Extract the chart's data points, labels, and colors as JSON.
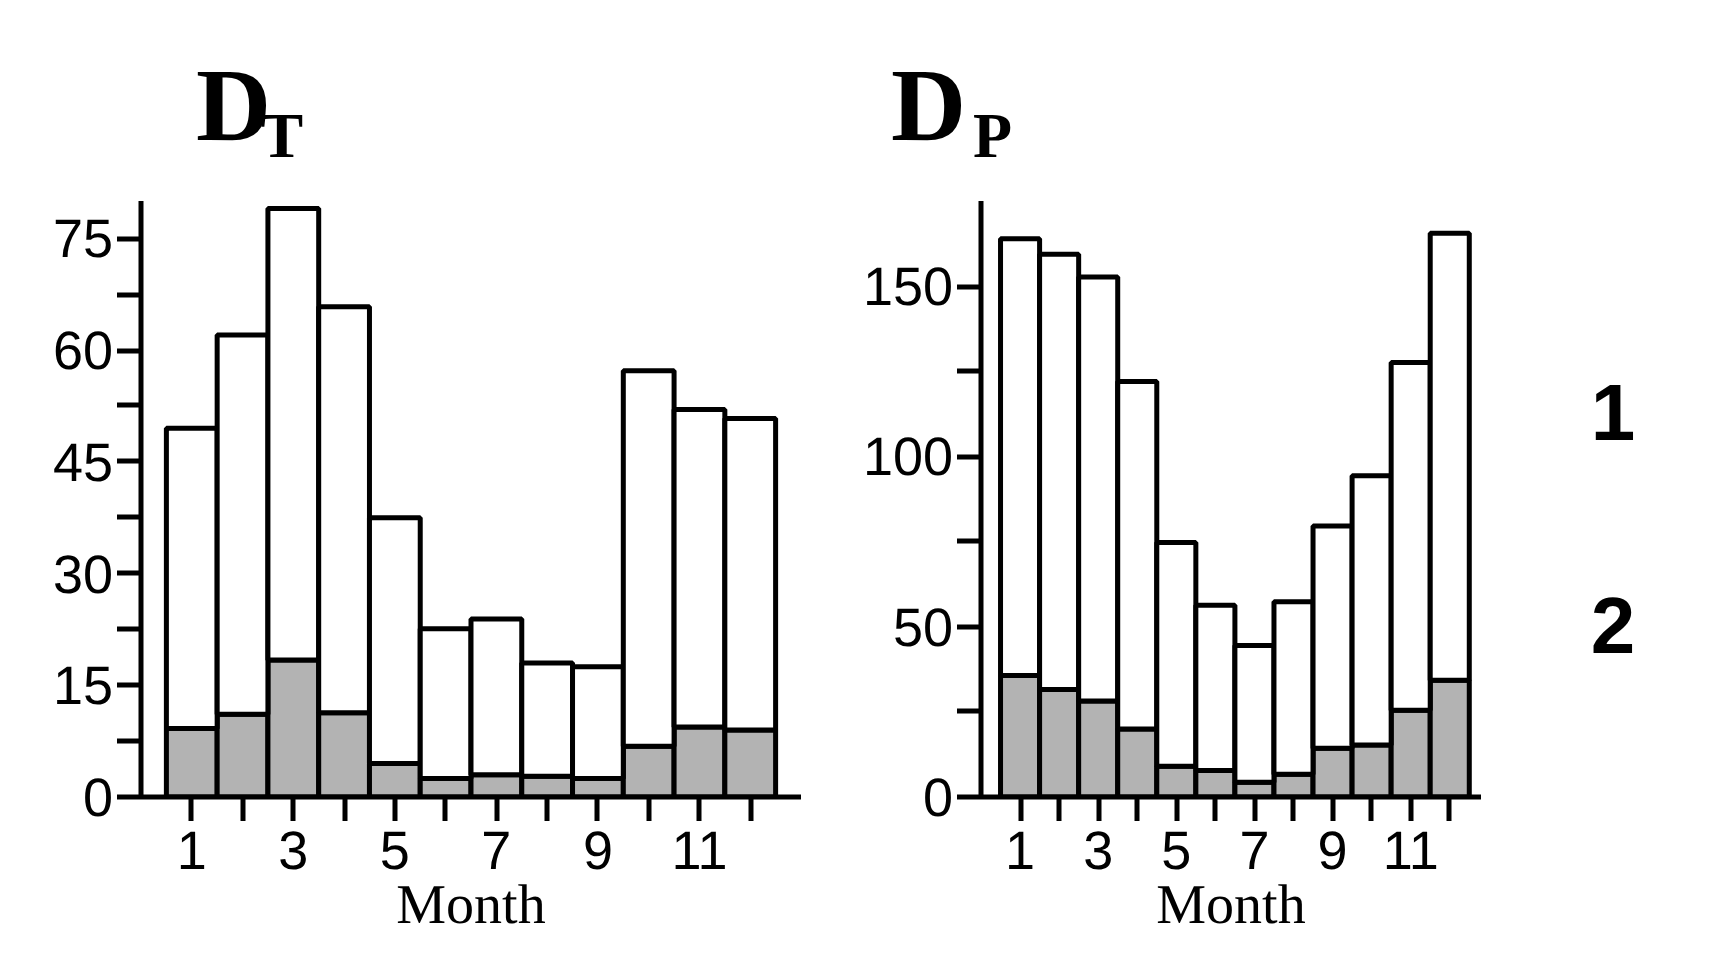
{
  "chart_data": [
    {
      "type": "bar",
      "title": "D$_{T}$",
      "xlabel": "Month",
      "stacked": true,
      "grid": false,
      "x": [
        1,
        2,
        3,
        4,
        5,
        6,
        7,
        8,
        9,
        10,
        11,
        12
      ],
      "xlim": [
        0,
        13
      ],
      "xticks": [
        1,
        {
          "value": 2,
          "label": null
        },
        3,
        {
          "value": 4,
          "label": null
        },
        5,
        {
          "value": 6,
          "label": null
        },
        7,
        {
          "value": 8,
          "label": null
        },
        9,
        {
          "value": 10,
          "label": null
        },
        11,
        {
          "value": 12,
          "label": null
        }
      ],
      "ylim": [
        0,
        80
      ],
      "yticks": [
        0,
        {
          "value": 7.5,
          "label": null
        },
        15,
        {
          "value": 22.5,
          "label": null
        },
        30,
        {
          "value": 37.5,
          "label": null
        },
        45,
        {
          "value": 52.5,
          "label": null
        },
        60,
        {
          "value": 67.5,
          "label": null
        },
        75
      ],
      "series": [
        {
          "color": "#b3b3b3",
          "values": [
            9.2,
            11.1,
            18.4,
            11.3,
            4.5,
            2.5,
            3,
            2.8,
            2.5,
            6.8,
            9.4,
            9
          ]
        },
        {
          "color": "#ffffff",
          "values": [
            40.3,
            50.9,
            60.6,
            54.5,
            33,
            20.1,
            20.9,
            15.2,
            15,
            50.4,
            42.6,
            41.8
          ]
        }
      ]
    },
    {
      "type": "bar",
      "title": "D$_{P}$",
      "xlabel": "Month",
      "stacked": true,
      "grid": false,
      "x": [
        1,
        2,
        3,
        4,
        5,
        6,
        7,
        8,
        9,
        10,
        11,
        12
      ],
      "xlim": [
        0,
        12.8
      ],
      "xticks": [
        1,
        {
          "value": 2,
          "label": null
        },
        3,
        {
          "value": 4,
          "label": null
        },
        5,
        {
          "value": 6,
          "label": null
        },
        7,
        {
          "value": 8,
          "label": null
        },
        9,
        {
          "value": 10,
          "label": null
        },
        11,
        {
          "value": 12,
          "label": null
        }
      ],
      "ylim": [
        0,
        175
      ],
      "yticks": [
        0,
        {
          "value": 25,
          "label": null
        },
        50,
        {
          "value": 75,
          "label": null
        },
        100,
        {
          "value": 125,
          "label": null
        },
        150
      ],
      "series": [
        {
          "name": "2",
          "color": "#b3b3b3",
          "values": [
            35.7,
            31.6,
            28.2,
            20,
            9,
            7.8,
            4.3,
            6.7,
            14.3,
            15.3,
            25.5,
            34.3
          ]
        },
        {
          "name": "1",
          "color": "#ffffff",
          "values": [
            128.2,
            127.8,
            124.5,
            102,
            65.7,
            48.5,
            40.2,
            50.6,
            65.3,
            79,
            102.1,
            131.2
          ]
        }
      ]
    }
  ]
}
